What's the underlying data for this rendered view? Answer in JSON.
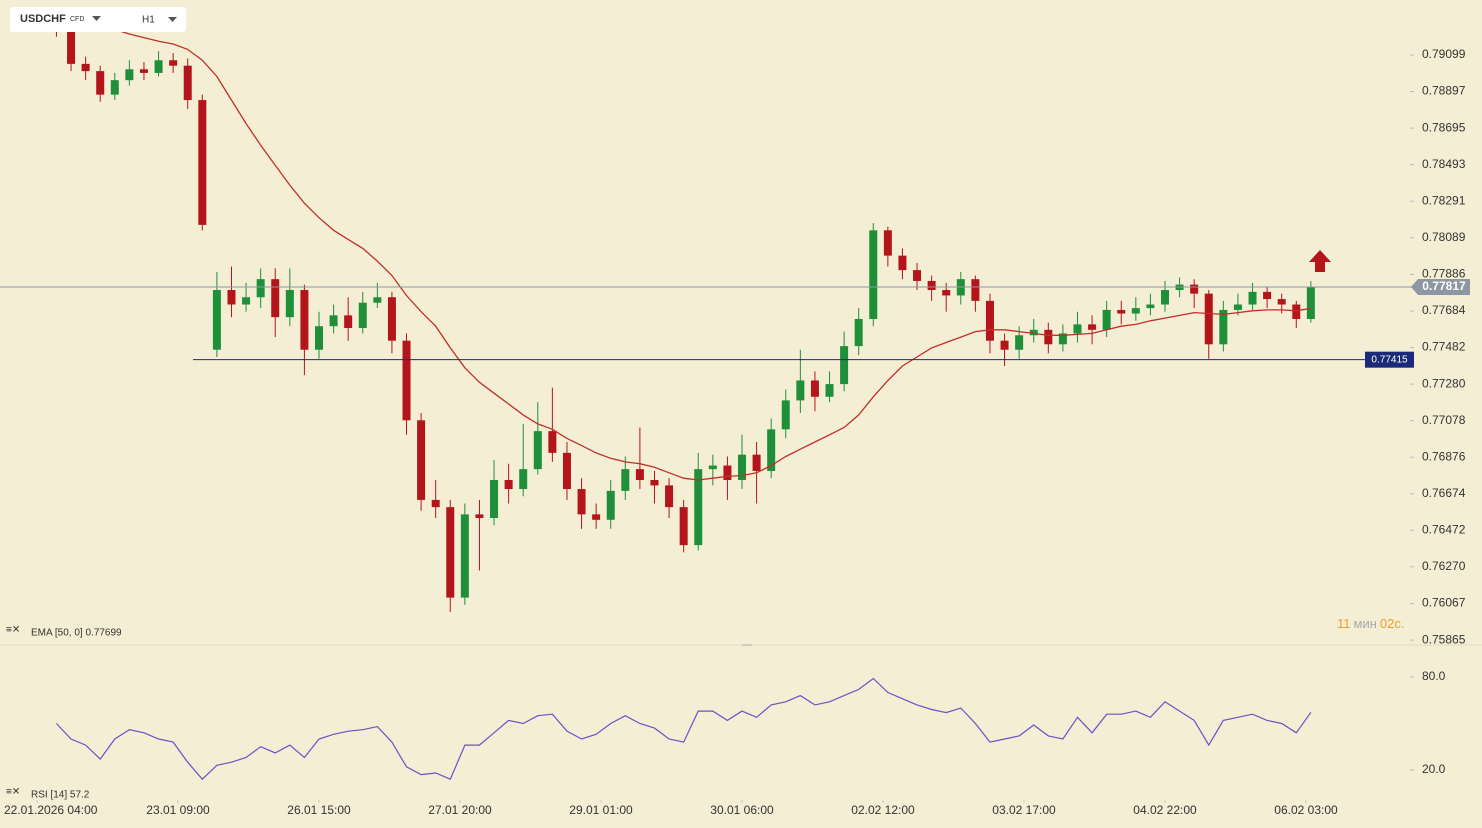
{
  "header": {
    "symbol": "USDCHF",
    "instrument_type": "CFD",
    "timeframe": "H1"
  },
  "chart_data": [
    {
      "type": "candlestick",
      "x": [
        4,
        7,
        10,
        13,
        16,
        19,
        22,
        25,
        28,
        31,
        34,
        37,
        40,
        43,
        46,
        49,
        52,
        55,
        58,
        61,
        64,
        67,
        70,
        73,
        76,
        79,
        82,
        85,
        88,
        91,
        94,
        97,
        100,
        103,
        106,
        109,
        112,
        115,
        118,
        121,
        124,
        127,
        130,
        133,
        136,
        139,
        142,
        145,
        148,
        151,
        154,
        157,
        160,
        163,
        166,
        169,
        172,
        175,
        178,
        181,
        184,
        187,
        190,
        193,
        196,
        199,
        202,
        205,
        208,
        211,
        214,
        217,
        220,
        223,
        226,
        229,
        232,
        235,
        238,
        241,
        244,
        247,
        250,
        253,
        256,
        259,
        262
      ],
      "open": [
        0.7928,
        0.79237,
        0.7905,
        0.7901,
        0.7888,
        0.7896,
        0.7902,
        0.79,
        0.7907,
        0.7904,
        0.7885,
        0.7747,
        0.778,
        0.7772,
        0.7776,
        0.7786,
        0.7765,
        0.778,
        0.7747,
        0.776,
        0.7766,
        0.7759,
        0.7773,
        0.7776,
        0.7752,
        0.7708,
        0.7664,
        0.766,
        0.761,
        0.7656,
        0.7654,
        0.7675,
        0.767,
        0.7681,
        0.7702,
        0.769,
        0.767,
        0.7656,
        0.7653,
        0.7669,
        0.7681,
        0.7675,
        0.7672,
        0.766,
        0.7639,
        0.7681,
        0.7683,
        0.7675,
        0.7689,
        0.768,
        0.7703,
        0.7719,
        0.773,
        0.7721,
        0.7728,
        0.7749,
        0.7764,
        0.7813,
        0.7799,
        0.7791,
        0.7785,
        0.778,
        0.7777,
        0.7786,
        0.7774,
        0.7752,
        0.7747,
        0.7755,
        0.7758,
        0.775,
        0.7756,
        0.7761,
        0.7758,
        0.7769,
        0.7767,
        0.777,
        0.7772,
        0.778,
        0.7783,
        0.7778,
        0.775,
        0.7769,
        0.7772,
        0.7779,
        0.7775,
        0.7772,
        0.7764
      ],
      "high": [
        0.7932,
        0.7927,
        0.7909,
        0.7904,
        0.79,
        0.7907,
        0.7906,
        0.7912,
        0.7911,
        0.7908,
        0.7888,
        0.779,
        0.7793,
        0.7784,
        0.7792,
        0.7792,
        0.7792,
        0.7783,
        0.7768,
        0.7772,
        0.7776,
        0.7779,
        0.7784,
        0.7779,
        0.7756,
        0.7712,
        0.7675,
        0.7664,
        0.7662,
        0.7664,
        0.7686,
        0.7684,
        0.7706,
        0.7718,
        0.7726,
        0.7696,
        0.7676,
        0.7662,
        0.7675,
        0.7688,
        0.7704,
        0.768,
        0.7676,
        0.7664,
        0.769,
        0.7689,
        0.7688,
        0.77,
        0.7696,
        0.7709,
        0.7725,
        0.7747,
        0.7735,
        0.7735,
        0.7757,
        0.777,
        0.7817,
        0.7815,
        0.7803,
        0.7795,
        0.7788,
        0.7784,
        0.779,
        0.7788,
        0.7778,
        0.7756,
        0.776,
        0.7764,
        0.7762,
        0.7761,
        0.7768,
        0.7766,
        0.7774,
        0.7774,
        0.7776,
        0.7778,
        0.7785,
        0.7787,
        0.7786,
        0.778,
        0.7774,
        0.7778,
        0.7784,
        0.7782,
        0.7778,
        0.7774,
        0.7785
      ],
      "low": [
        0.792,
        0.7901,
        0.7896,
        0.7884,
        0.7885,
        0.7893,
        0.7896,
        0.7898,
        0.79,
        0.788,
        0.7813,
        0.7743,
        0.7765,
        0.7768,
        0.777,
        0.7754,
        0.776,
        0.7733,
        0.7742,
        0.7756,
        0.7752,
        0.7756,
        0.777,
        0.7745,
        0.77,
        0.7658,
        0.7654,
        0.7602,
        0.7606,
        0.7625,
        0.765,
        0.7662,
        0.7666,
        0.7678,
        0.7685,
        0.7664,
        0.7648,
        0.7648,
        0.7648,
        0.7664,
        0.767,
        0.7662,
        0.7654,
        0.7635,
        0.7636,
        0.7672,
        0.7664,
        0.767,
        0.7662,
        0.7676,
        0.7698,
        0.7712,
        0.7713,
        0.7718,
        0.7724,
        0.7744,
        0.776,
        0.7793,
        0.7786,
        0.778,
        0.7774,
        0.7768,
        0.7772,
        0.7768,
        0.7745,
        0.7738,
        0.7742,
        0.7751,
        0.7745,
        0.7746,
        0.7751,
        0.775,
        0.7754,
        0.7761,
        0.7763,
        0.7766,
        0.7768,
        0.7776,
        0.777,
        0.7742,
        0.7746,
        0.7766,
        0.7769,
        0.777,
        0.7767,
        0.7759,
        0.7762
      ],
      "close": [
        0.79237,
        0.7905,
        0.7901,
        0.7888,
        0.7896,
        0.7902,
        0.79,
        0.7907,
        0.7904,
        0.7885,
        0.7816,
        0.778,
        0.7772,
        0.7776,
        0.7786,
        0.7765,
        0.778,
        0.7747,
        0.776,
        0.7766,
        0.7759,
        0.7773,
        0.7776,
        0.7752,
        0.7708,
        0.7664,
        0.766,
        0.761,
        0.7656,
        0.7654,
        0.7675,
        0.767,
        0.7681,
        0.7702,
        0.769,
        0.767,
        0.7656,
        0.7653,
        0.7669,
        0.7681,
        0.7675,
        0.7672,
        0.766,
        0.7639,
        0.7681,
        0.7683,
        0.7675,
        0.7689,
        0.768,
        0.7703,
        0.7719,
        0.773,
        0.7721,
        0.7728,
        0.7749,
        0.7764,
        0.7813,
        0.7799,
        0.7791,
        0.7785,
        0.778,
        0.7777,
        0.7786,
        0.7774,
        0.7752,
        0.7747,
        0.7755,
        0.7758,
        0.775,
        0.7756,
        0.7761,
        0.7758,
        0.7769,
        0.7767,
        0.777,
        0.7772,
        0.778,
        0.7783,
        0.7778,
        0.775,
        0.7769,
        0.7772,
        0.7779,
        0.7775,
        0.7772,
        0.7764,
        0.77817
      ],
      "up_color": "#1f8f3a",
      "down_color": "#b3151b",
      "series": [
        {
          "name": "EMA [50, 0] 0.77699",
          "color": "#c0302a",
          "values": [
            0.7933,
            0.7931,
            0.7929,
            0.79265,
            0.7924,
            0.79215,
            0.79195,
            0.79175,
            0.7916,
            0.7913,
            0.7907,
            0.7898,
            0.7885,
            0.7872,
            0.786,
            0.7849,
            0.7838,
            0.7828,
            0.782,
            0.7813,
            0.7808,
            0.7803,
            0.7796,
            0.7788,
            0.7777,
            0.7768,
            0.776,
            0.7748,
            0.7737,
            0.7729,
            0.7723,
            0.7717,
            0.7711,
            0.7706,
            0.7703,
            0.7698,
            0.7694,
            0.769,
            0.7687,
            0.7685,
            0.7684,
            0.7682,
            0.7679,
            0.7676,
            0.7675,
            0.7676,
            0.7677,
            0.76775,
            0.7679,
            0.7683,
            0.7688,
            0.7692,
            0.7696,
            0.77,
            0.7704,
            0.7711,
            0.7721,
            0.773,
            0.7738,
            0.7743,
            0.7748,
            0.7751,
            0.7754,
            0.7757,
            0.7758,
            0.7758,
            0.7757,
            0.7756,
            0.7755,
            0.7755,
            0.77555,
            0.7756,
            0.7758,
            0.776,
            0.7761,
            0.7763,
            0.77645,
            0.7766,
            0.77675,
            0.7767,
            0.77665,
            0.77675,
            0.77685,
            0.7769,
            0.7769,
            0.77685,
            0.77699
          ]
        }
      ],
      "ylim": [
        0.75838,
        0.79403
      ],
      "yticks": [
        0.79099,
        0.78897,
        0.78695,
        0.78493,
        0.78291,
        0.78089,
        0.77886,
        0.77684,
        0.77482,
        {
          "value": 0.7728,
          "label": "0.77280"
        },
        0.77078,
        0.76876,
        0.76674,
        0.76472,
        {
          "value": 0.7627,
          "label": "0.76270"
        },
        0.76067,
        0.75865
      ],
      "xlim": [
        -7.61,
        282.39
      ],
      "xticks": [
        {
          "value": 0,
          "label": "22.01.2026 04:00"
        },
        {
          "value": 29,
          "label": "23.01 09:00"
        },
        {
          "value": 58,
          "label": "26.01 15:00"
        },
        {
          "value": 87,
          "label": "27.01 20:00"
        },
        {
          "value": 116,
          "label": "29.01 01:00"
        },
        {
          "value": 145,
          "label": "30.01 06:00"
        },
        {
          "value": 174,
          "label": "02.02 12:00"
        },
        {
          "value": 203,
          "label": "03.02 17:00"
        },
        {
          "value": 232,
          "label": "04.02 22:00"
        },
        {
          "value": 261,
          "label": "06.02 03:00"
        }
      ],
      "last_price": 0.77817,
      "last_price_color": "#8d97a3",
      "level": 0.77415,
      "level_color": "#1b2a78"
    },
    {
      "type": "line",
      "series": [
        {
          "name": "RSI [14] 57.2",
          "color": "#6b52c8",
          "values": [
            50,
            40,
            36,
            27,
            40,
            46,
            44,
            40,
            38,
            25,
            14,
            23,
            25,
            28,
            35,
            31,
            36,
            28,
            40,
            43,
            45,
            46,
            48,
            38,
            22,
            17,
            18,
            14,
            36,
            36,
            44,
            52,
            50,
            55,
            56,
            45,
            40,
            43,
            50,
            55,
            50,
            47,
            40,
            38,
            58,
            58,
            52,
            58,
            54,
            62,
            64,
            68,
            62,
            64,
            68,
            72,
            79,
            70,
            66,
            62,
            59,
            57,
            60,
            50,
            38,
            40,
            42,
            49,
            42,
            40,
            54,
            44,
            56,
            56,
            58,
            54,
            64,
            58,
            52,
            36,
            52,
            54,
            56,
            52,
            50,
            44,
            57.2
          ]
        }
      ],
      "ylim": [
        0.6,
        98.7
      ],
      "yticks": [
        {
          "value": 80,
          "label": "80.0"
        },
        {
          "value": 20,
          "label": "20.0"
        }
      ]
    }
  ],
  "timer": {
    "minutes": "11",
    "minutes_unit": "мин",
    "seconds": "02",
    "seconds_unit": "с."
  }
}
